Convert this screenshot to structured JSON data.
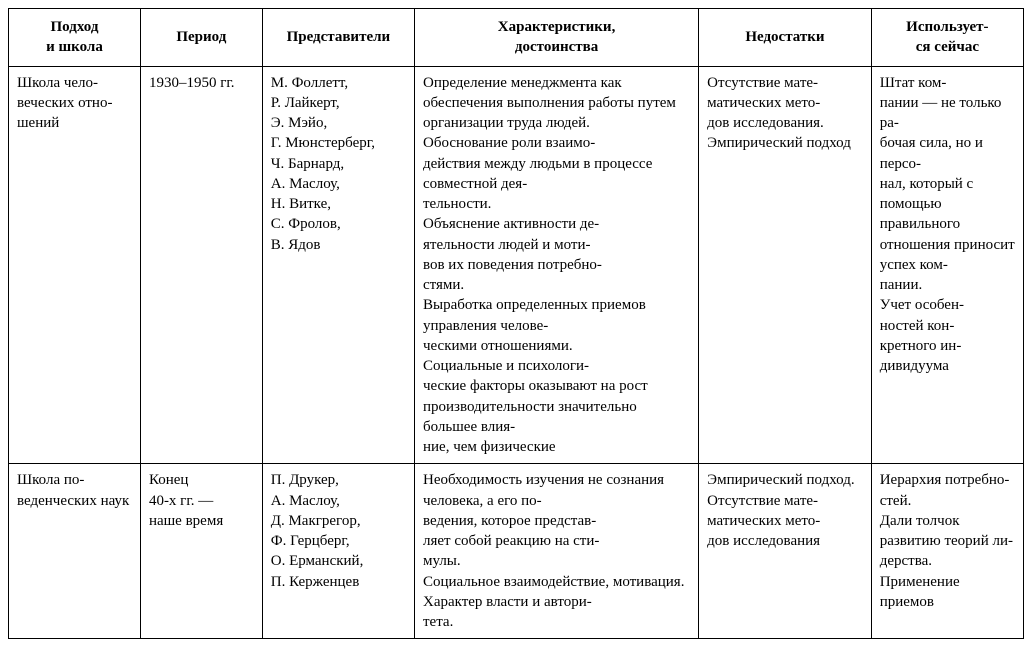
{
  "table": {
    "type": "table",
    "columns": [
      {
        "header": "Подход\nи школа",
        "width": "13%",
        "align": "left"
      },
      {
        "header": "Период",
        "width": "12%",
        "align": "left"
      },
      {
        "header": "Представители",
        "width": "15%",
        "align": "left"
      },
      {
        "header": "Характеристики,\nдостоинства",
        "width": "28%",
        "align": "left"
      },
      {
        "header": "Недостатки",
        "width": "17%",
        "align": "left"
      },
      {
        "header": "Использует-\nся сейчас",
        "width": "15%",
        "align": "left"
      }
    ],
    "rows": [
      {
        "approach": "Школа чело-\nвеческих отно-\nшений",
        "period": "1930–1950 гг.",
        "people": "М. Фоллетт,\nР. Лайкерт,\nЭ. Мэйо,\nГ. Мюнстерберг,\nЧ. Барнард,\nА. Маслоу,\nН. Витке,\nС. Фролов,\nВ. Ядов",
        "characteristics": "Определение менеджмента как обеспечения выполнения работы путем организации труда людей.\nОбоснование роли взаимо-\nдействия между людьми в процессе совместной дея-\nтельности.\nОбъяснение активности де-\nятельности людей и моти-\nвов их поведения потребно-\nстями.\nВыработка определенных приемов управления челове-\nческими отношениями.\nСоциальные и психологи-\nческие факторы оказывают на рост производительности значительно большее влия-\nние, чем физические",
        "drawbacks": "Отсутствие мате-\nматических мето-\nдов исследования.\nЭмпирический подход",
        "current": "Штат ком-\nпании — не только ра-\nбочая сила, но и персо-\nнал, который с помощью правильного отношения приносит успех ком-\nпании.\nУчет особен-\nностей кон-\nкретного ин-\nдивидуума"
      },
      {
        "approach": "Школа по-\nведенческих наук",
        "period": "Конец\n40-х гг. —\nнаше время",
        "people": "П. Друкер,\nА. Маслоу,\nД. Макгрегор,\nФ. Герцберг,\nО. Ерманский,\nП. Керженцев",
        "characteristics": "Необходимость изучения не сознания человека, а его по-\nведения, которое представ-\nляет собой реакцию на сти-\nмулы.\nСоциальное взаимодействие, мотивация.\nХарактер власти и автори-\nтета.",
        "drawbacks": "Эмпирический подход.\nОтсутствие мате-\nматических мето-\nдов исследования",
        "current": "Иерархия потребно-\nстей.\nДали толчок развитию теорий ли-\nдерства.\nПрименение приемов"
      }
    ],
    "styling": {
      "border_color": "#000000",
      "background_color": "#ffffff",
      "text_color": "#000000",
      "font_family": "Times New Roman",
      "header_fontsize": 15,
      "cell_fontsize": 15,
      "header_fontweight": "bold",
      "line_height": 1.35,
      "cell_padding": "6px 8px"
    }
  }
}
